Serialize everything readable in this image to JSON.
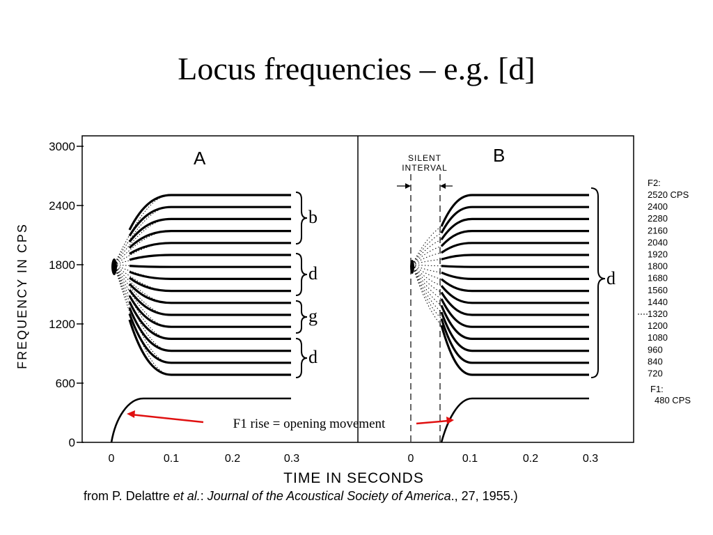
{
  "slide": {
    "title": "Locus frequencies – e.g. [d]"
  },
  "figure": {
    "panel_a_label": "A",
    "panel_b_label": "B",
    "y_axis_label": "FREQUENCY IN CPS",
    "x_axis_label": "TIME IN SECONDS",
    "y_ticks": [
      "3000",
      "2400",
      "1800",
      "1200",
      "600",
      "0"
    ],
    "x_ticks_a": [
      "0",
      "0.1",
      "0.2",
      "0.3"
    ],
    "x_ticks_b": [
      "0",
      "0.1",
      "0.2",
      "0.3"
    ],
    "silent_interval_line1": "SILENT",
    "silent_interval_line2": "INTERVAL",
    "brace_a": [
      "b",
      "d",
      "g",
      "d"
    ],
    "brace_b": "d",
    "f2_header": "F2:",
    "f2_values": [
      "2520 CPS",
      "2400",
      "2280",
      "2160",
      "2040",
      "1920",
      "1800",
      "1680",
      "1560",
      "1440",
      "1320",
      "1200",
      "1080",
      "960",
      "840",
      "720"
    ],
    "f1_header": "F1:",
    "f1_value": "480 CPS",
    "locus_hz": 1800,
    "f1_hz": 480,
    "annotation": "F1 rise = opening movement",
    "annotation_color": "#e01010"
  },
  "caption": {
    "prefix": "from P. Delattre ",
    "etal": "et al.",
    "colon": ": ",
    "journal": "Journal of the Acoustical Society of America",
    "suffix": "., 27, 1955.)"
  }
}
